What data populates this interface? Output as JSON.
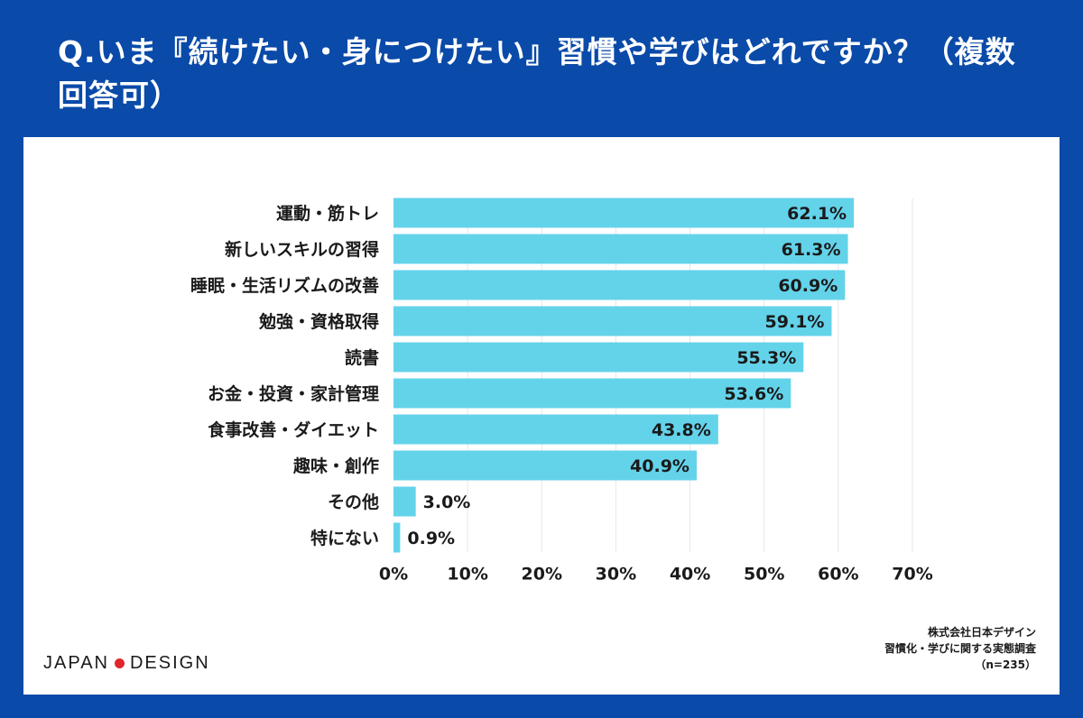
{
  "header": {
    "title": "Q.いま『続けたい・身につけたい』習慣や学びはどれですか？（複数回答可）"
  },
  "chart_data": {
    "type": "bar",
    "orientation": "horizontal",
    "title": "Q.いま『続けたい・身につけたい』習慣や学びはどれですか？（複数回答可）",
    "categories": [
      "運動・筋トレ",
      "新しいスキルの習得",
      "睡眠・生活リズムの改善",
      "勉強・資格取得",
      "読書",
      "お金・投資・家計管理",
      "食事改善・ダイエット",
      "趣味・創作",
      "その他",
      "特にない"
    ],
    "values": [
      62.1,
      61.3,
      60.9,
      59.1,
      55.3,
      53.6,
      43.8,
      40.9,
      3.0,
      0.9
    ],
    "value_labels": [
      "62.1%",
      "61.3%",
      "60.9%",
      "59.1%",
      "55.3%",
      "53.6%",
      "43.8%",
      "40.9%",
      "3.0%",
      "0.9%"
    ],
    "xlim": [
      0,
      70
    ],
    "x_ticks": [
      0,
      10,
      20,
      30,
      40,
      50,
      60,
      70
    ],
    "x_tick_labels": [
      "0%",
      "10%",
      "20%",
      "30%",
      "40%",
      "50%",
      "60%",
      "70%"
    ],
    "xlabel": "",
    "ylabel": "",
    "grid": true,
    "bar_color": "#63d3ea",
    "grid_color": "#e6e6e6"
  },
  "footer": {
    "logo_left": "JAPAN",
    "logo_right": "DESIGN",
    "logo_dot_color": "#e0262a",
    "source_line1": "株式会社日本デザイン",
    "source_line2": "習慣化・学びに関する実態調査",
    "source_line3": "（n=235）"
  },
  "colors": {
    "background": "#0a4aa8",
    "panel": "#ffffff"
  }
}
